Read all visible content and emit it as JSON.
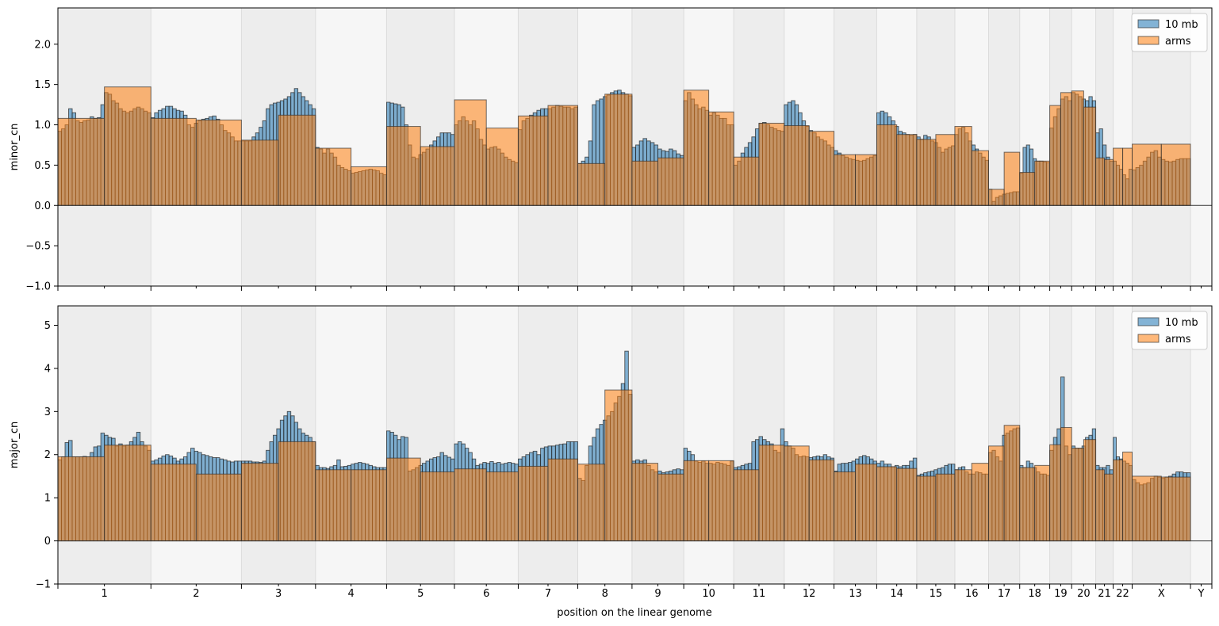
{
  "chart_data": {
    "type": "bar",
    "xlabel": "position on the linear genome",
    "chromosomes": [
      {
        "name": "1",
        "len": 248.956
      },
      {
        "name": "2",
        "len": 242.193
      },
      {
        "name": "3",
        "len": 198.295
      },
      {
        "name": "4",
        "len": 190.214
      },
      {
        "name": "5",
        "len": 181.538
      },
      {
        "name": "6",
        "len": 170.805
      },
      {
        "name": "7",
        "len": 159.346
      },
      {
        "name": "8",
        "len": 145.138
      },
      {
        "name": "9",
        "len": 138.394
      },
      {
        "name": "10",
        "len": 133.797
      },
      {
        "name": "11",
        "len": 135.086
      },
      {
        "name": "12",
        "len": 133.275
      },
      {
        "name": "13",
        "len": 114.364
      },
      {
        "name": "14",
        "len": 107.043
      },
      {
        "name": "15",
        "len": 101.991
      },
      {
        "name": "16",
        "len": 90.338
      },
      {
        "name": "17",
        "len": 83.257
      },
      {
        "name": "18",
        "len": 80.373
      },
      {
        "name": "19",
        "len": 58.617
      },
      {
        "name": "20",
        "len": 64.444
      },
      {
        "name": "21",
        "len": 46.709
      },
      {
        "name": "22",
        "len": 50.818
      },
      {
        "name": "X",
        "len": 156.041
      },
      {
        "name": "Y",
        "len": 57.227
      }
    ],
    "bin_size": 10,
    "series_names": [
      "10 mb",
      "arms"
    ],
    "colors": {
      "bins": "#1f77b4",
      "arms": "#ff7f0e",
      "band_dark": "#ededed",
      "band_light": "#f6f6f6"
    },
    "panels": [
      {
        "ylabel": "minor_cn",
        "ylim": [
          -1.0,
          2.45
        ],
        "yticks": [
          "2.0",
          "1.5",
          "1.0",
          "0.5",
          "0.0",
          "−0.5",
          "−1.0"
        ],
        "ytick_values": [
          2.0,
          1.5,
          1.0,
          0.5,
          0.0,
          -0.5,
          -1.0
        ],
        "arms": [
          [
            1.08,
            1.47
          ],
          [
            1.08,
            1.06
          ],
          [
            0.81,
            1.12
          ],
          [
            0.71,
            0.48
          ],
          [
            0.98,
            0.73
          ],
          [
            1.31,
            0.96
          ],
          [
            1.11,
            1.24
          ],
          [
            0.52,
            1.38
          ],
          [
            0.55,
            0.59
          ],
          [
            1.43,
            1.16
          ],
          [
            0.6,
            1.02
          ],
          [
            0.99,
            0.92
          ],
          [
            0.63,
            0.63
          ],
          [
            1.0,
            0.88
          ],
          [
            0.82,
            0.88
          ],
          [
            0.98,
            0.68
          ],
          [
            0.2,
            0.66
          ],
          [
            0.41,
            0.55
          ],
          [
            1.24,
            1.4
          ],
          [
            1.42,
            1.22
          ],
          [
            0.59,
            0.57
          ],
          [
            0.71,
            0.71
          ],
          [
            0.76,
            0.76
          ],
          [
            0.0,
            0.0
          ]
        ],
        "bins": [
          [
            0.92,
            0.95,
            1.0,
            1.2,
            1.15,
            1.05,
            1.03,
            1.05,
            1.06,
            1.1,
            1.08,
            1.09,
            1.25,
            1.4,
            1.38,
            1.3,
            1.27,
            1.2,
            1.17,
            1.15,
            1.17,
            1.2,
            1.22,
            1.2,
            1.17,
            1.15
          ],
          [
            1.09,
            1.15,
            1.18,
            1.2,
            1.23,
            1.23,
            1.2,
            1.18,
            1.17,
            1.12,
            1.0,
            0.97,
            1.02,
            1.05,
            1.07,
            1.08,
            1.1,
            1.11,
            1.07,
            1.0,
            0.93,
            0.9,
            0.85,
            0.8,
            0.8
          ],
          [
            0.8,
            0.8,
            0.8,
            0.85,
            0.9,
            0.97,
            1.05,
            1.2,
            1.25,
            1.27,
            1.28,
            1.3,
            1.32,
            1.35,
            1.4,
            1.45,
            1.4,
            1.35,
            1.3,
            1.25,
            1.2
          ],
          [
            0.72,
            0.7,
            0.65,
            0.7,
            0.65,
            0.6,
            0.5,
            0.47,
            0.45,
            0.43,
            0.4,
            0.41,
            0.42,
            0.43,
            0.44,
            0.45,
            0.44,
            0.43,
            0.4,
            0.38
          ],
          [
            1.28,
            1.27,
            1.26,
            1.25,
            1.22,
            1.0,
            0.75,
            0.6,
            0.58,
            0.63,
            0.66,
            0.7,
            0.75,
            0.8,
            0.85,
            0.9,
            0.9,
            0.9,
            0.88
          ],
          [
            1.0,
            1.05,
            1.1,
            1.05,
            1.0,
            1.05,
            0.95,
            0.82,
            0.75,
            0.7,
            0.72,
            0.73,
            0.7,
            0.65,
            0.6,
            0.57,
            0.55,
            0.53
          ],
          [
            0.94,
            1.05,
            1.08,
            1.12,
            1.15,
            1.18,
            1.2,
            1.2,
            1.2,
            1.22,
            1.24,
            1.23,
            1.22,
            1.22,
            1.2,
            1.22
          ],
          [
            0.52,
            0.55,
            0.6,
            0.8,
            1.25,
            1.3,
            1.32,
            1.35,
            1.37,
            1.4,
            1.42,
            1.43,
            1.4,
            1.38,
            1.36
          ],
          [
            0.72,
            0.75,
            0.8,
            0.83,
            0.8,
            0.78,
            0.75,
            0.7,
            0.68,
            0.67,
            0.7,
            0.68,
            0.64,
            0.62
          ],
          [
            1.3,
            1.4,
            1.32,
            1.25,
            1.2,
            1.22,
            1.18,
            1.12,
            1.15,
            1.12,
            1.08,
            1.08,
            1.0,
            1.0
          ],
          [
            0.5,
            0.55,
            0.65,
            0.72,
            0.78,
            0.85,
            0.95,
            1.02,
            1.03,
            1.0,
            0.97,
            0.95,
            0.93,
            0.92
          ],
          [
            1.25,
            1.28,
            1.3,
            1.25,
            1.15,
            1.05,
            0.98,
            0.93,
            0.9,
            0.85,
            0.82,
            0.8,
            0.75,
            0.72
          ],
          [
            0.68,
            0.65,
            0.62,
            0.6,
            0.58,
            0.57,
            0.56,
            0.55,
            0.56,
            0.58,
            0.6,
            0.62
          ],
          [
            1.15,
            1.17,
            1.15,
            1.1,
            1.05,
            0.98,
            0.92,
            0.9,
            0.88,
            0.87,
            0.88
          ],
          [
            0.85,
            0.82,
            0.87,
            0.85,
            0.8,
            0.78,
            0.72,
            0.66,
            0.7,
            0.72,
            0.74
          ],
          [
            0.88,
            0.95,
            0.97,
            0.9,
            0.8,
            0.75,
            0.7,
            0.65,
            0.6,
            0.56
          ],
          [
            0.2,
            0.05,
            0.1,
            0.12,
            0.14,
            0.15,
            0.16,
            0.17,
            0.17
          ],
          [
            0.4,
            0.72,
            0.75,
            0.7,
            0.58,
            0.55,
            0.55,
            0.54,
            0.53
          ],
          [
            0.96,
            1.1,
            1.2,
            1.32,
            1.35,
            1.3
          ],
          [
            1.4,
            1.38,
            1.35,
            1.32,
            1.3,
            1.35,
            1.3
          ],
          [
            0.9,
            0.95,
            0.75,
            0.6,
            0.55
          ],
          [
            0.55,
            0.5,
            0.45,
            0.38,
            0.33,
            0.45
          ],
          [
            0.44,
            0.47,
            0.5,
            0.55,
            0.6,
            0.66,
            0.68,
            0.6,
            0.57,
            0.55,
            0.54,
            0.55,
            0.57,
            0.58,
            0.58,
            0.58
          ],
          [
            0.0,
            0.0,
            0.0,
            0.0,
            0.0,
            0.0
          ]
        ]
      },
      {
        "ylabel": "major_cn",
        "ylim": [
          -1.0,
          5.45
        ],
        "yticks": [
          "5",
          "4",
          "3",
          "2",
          "1",
          "0",
          "−1"
        ],
        "ytick_values": [
          5,
          4,
          3,
          2,
          1,
          0,
          -1
        ],
        "arms": [
          [
            1.95,
            2.22
          ],
          [
            1.78,
            1.55
          ],
          [
            1.8,
            2.3
          ],
          [
            1.65,
            1.65
          ],
          [
            1.92,
            1.6
          ],
          [
            1.67,
            1.6
          ],
          [
            1.73,
            1.9
          ],
          [
            1.78,
            3.5
          ],
          [
            1.8,
            1.55
          ],
          [
            1.86,
            1.86
          ],
          [
            1.65,
            2.22
          ],
          [
            2.2,
            1.88
          ],
          [
            1.6,
            1.78
          ],
          [
            1.72,
            1.68
          ],
          [
            1.5,
            1.55
          ],
          [
            1.65,
            1.8
          ],
          [
            2.2,
            2.68
          ],
          [
            1.7,
            1.75
          ],
          [
            2.23,
            2.63
          ],
          [
            2.15,
            2.35
          ],
          [
            1.65,
            1.55
          ],
          [
            1.88,
            2.06
          ],
          [
            1.5,
            1.48
          ],
          [
            0.0,
            0.0
          ]
        ],
        "bins": [
          [
            1.88,
            1.95,
            2.28,
            2.33,
            1.95,
            1.95,
            1.95,
            1.96,
            1.95,
            2.05,
            2.18,
            2.2,
            2.5,
            2.45,
            2.4,
            2.38,
            2.2,
            2.25,
            2.2,
            2.22,
            2.3,
            2.4,
            2.52,
            2.3,
            2.2,
            2.1
          ],
          [
            1.85,
            1.88,
            1.92,
            1.97,
            2.0,
            1.97,
            1.92,
            1.85,
            1.9,
            1.95,
            2.05,
            2.15,
            2.08,
            2.05,
            2.0,
            1.98,
            1.95,
            1.93,
            1.93,
            1.9,
            1.88,
            1.85,
            1.83,
            1.85,
            1.85
          ],
          [
            1.85,
            1.85,
            1.85,
            1.83,
            1.83,
            1.82,
            1.85,
            2.1,
            2.3,
            2.45,
            2.6,
            2.8,
            2.9,
            3.0,
            2.9,
            2.75,
            2.6,
            2.5,
            2.45,
            2.4,
            2.3
          ],
          [
            1.75,
            1.7,
            1.7,
            1.68,
            1.72,
            1.75,
            1.88,
            1.72,
            1.73,
            1.75,
            1.78,
            1.8,
            1.82,
            1.8,
            1.78,
            1.75,
            1.72,
            1.7,
            1.7,
            1.7
          ],
          [
            2.55,
            2.52,
            2.45,
            2.35,
            2.42,
            2.4,
            1.62,
            1.65,
            1.7,
            1.75,
            1.8,
            1.85,
            1.9,
            1.93,
            1.95,
            2.05,
            1.98,
            1.94,
            1.9
          ],
          [
            2.25,
            2.3,
            2.25,
            2.15,
            2.05,
            1.9,
            1.75,
            1.78,
            1.82,
            1.8,
            1.84,
            1.8,
            1.82,
            1.78,
            1.8,
            1.82,
            1.8,
            1.78
          ],
          [
            1.9,
            1.95,
            2.0,
            2.05,
            2.08,
            2.0,
            2.15,
            2.18,
            2.2,
            2.2,
            2.22,
            2.24,
            2.25,
            2.3,
            2.3,
            2.3
          ],
          [
            1.45,
            1.4,
            1.75,
            2.2,
            2.4,
            2.6,
            2.7,
            2.8,
            2.9,
            3.0,
            3.2,
            3.35,
            3.65,
            4.4,
            3.4
          ],
          [
            1.85,
            1.88,
            1.85,
            1.88,
            1.75,
            1.65,
            1.6,
            1.62,
            1.58,
            1.6,
            1.62,
            1.65,
            1.67,
            1.65
          ],
          [
            2.15,
            2.08,
            2.0,
            1.85,
            1.82,
            1.85,
            1.8,
            1.8,
            1.78,
            1.82,
            1.8,
            1.78,
            1.75,
            1.85
          ],
          [
            1.7,
            1.72,
            1.75,
            1.78,
            1.8,
            2.3,
            2.35,
            2.42,
            2.35,
            2.3,
            2.25,
            2.1,
            2.05,
            2.6
          ],
          [
            2.3,
            2.2,
            2.15,
            2.0,
            1.95,
            1.97,
            1.95,
            1.93,
            1.95,
            1.97,
            1.95,
            2.0,
            1.95,
            1.92
          ],
          [
            1.62,
            1.78,
            1.8,
            1.8,
            1.82,
            1.85,
            1.9,
            1.95,
            1.98,
            1.95,
            1.9,
            1.85
          ],
          [
            1.8,
            1.85,
            1.78,
            1.78,
            1.72,
            1.75,
            1.72,
            1.75,
            1.75,
            1.85,
            1.92
          ],
          [
            1.52,
            1.55,
            1.58,
            1.6,
            1.62,
            1.65,
            1.68,
            1.7,
            1.75,
            1.78,
            1.78
          ],
          [
            1.65,
            1.7,
            1.72,
            1.6,
            1.55,
            1.55,
            1.6,
            1.58,
            1.55,
            1.55
          ],
          [
            2.05,
            2.1,
            1.95,
            1.85,
            2.45,
            2.5,
            2.55,
            2.6,
            2.62
          ],
          [
            1.75,
            1.7,
            1.85,
            1.8,
            1.7,
            1.6,
            1.55,
            1.55,
            1.52
          ],
          [
            2.1,
            2.4,
            2.6,
            3.8,
            2.2,
            2.0
          ],
          [
            2.2,
            2.15,
            2.15,
            2.2,
            2.4,
            2.45,
            2.6
          ],
          [
            1.75,
            1.7,
            1.7,
            1.75,
            1.65
          ],
          [
            2.4,
            1.95,
            1.9,
            1.85,
            1.8,
            1.75
          ],
          [
            1.42,
            1.35,
            1.3,
            1.32,
            1.35,
            1.45,
            1.5,
            1.48,
            1.45,
            1.48,
            1.5,
            1.55,
            1.6,
            1.6,
            1.58,
            1.58
          ],
          [
            0.0,
            0.0,
            0.0,
            0.0,
            0.0,
            0.0
          ]
        ]
      }
    ]
  }
}
